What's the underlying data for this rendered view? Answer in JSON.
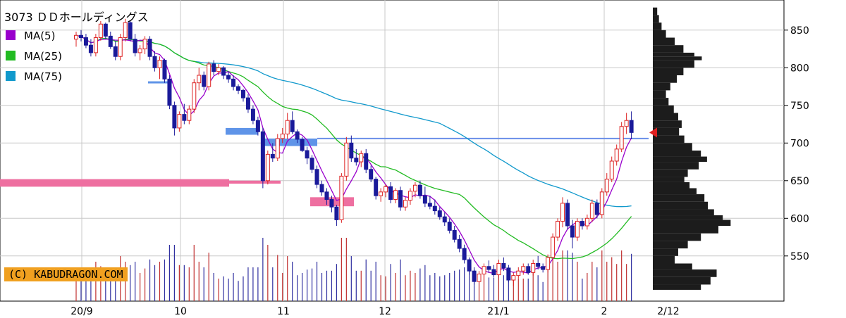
{
  "chart_data": {
    "type": "candlestick",
    "title": "3073 ＤＤホールディングス",
    "credit": "(C) KABUDRAGON.COM",
    "ylim": [
      490,
      890
    ],
    "y_ticks": [
      550,
      600,
      650,
      700,
      750,
      800,
      850
    ],
    "x_tick_labels": [
      "20/9",
      "10",
      "11",
      "12",
      "21/1",
      "2",
      "2/12"
    ],
    "last_close": 714,
    "legend": [
      {
        "name": "MA(5)",
        "color": "#9900cc"
      },
      {
        "name": "MA(25)",
        "color": "#22bb22"
      },
      {
        "name": "MA(75)",
        "color": "#1199cc"
      }
    ],
    "candles": [
      [
        838,
        848,
        828,
        843
      ],
      [
        843,
        850,
        835,
        840
      ],
      [
        840,
        845,
        826,
        830
      ],
      [
        830,
        838,
        815,
        820
      ],
      [
        820,
        845,
        815,
        840
      ],
      [
        840,
        862,
        836,
        858
      ],
      [
        858,
        860,
        838,
        842
      ],
      [
        842,
        848,
        825,
        828
      ],
      [
        828,
        835,
        810,
        815
      ],
      [
        815,
        845,
        810,
        840
      ],
      [
        840,
        865,
        835,
        860
      ],
      [
        860,
        862,
        835,
        838
      ],
      [
        838,
        845,
        815,
        820
      ],
      [
        820,
        830,
        810,
        825
      ],
      [
        825,
        842,
        818,
        838
      ],
      [
        838,
        842,
        810,
        815
      ],
      [
        815,
        822,
        795,
        800
      ],
      [
        800,
        815,
        785,
        810
      ],
      [
        810,
        812,
        780,
        785
      ],
      [
        785,
        790,
        745,
        750
      ],
      [
        750,
        755,
        710,
        720
      ],
      [
        720,
        742,
        715,
        738
      ],
      [
        738,
        752,
        725,
        730
      ],
      [
        730,
        750,
        725,
        745
      ],
      [
        745,
        785,
        740,
        780
      ],
      [
        780,
        800,
        770,
        790
      ],
      [
        790,
        795,
        770,
        775
      ],
      [
        775,
        808,
        770,
        805
      ],
      [
        805,
        810,
        790,
        795
      ],
      [
        795,
        805,
        790,
        800
      ],
      [
        800,
        802,
        785,
        790
      ],
      [
        790,
        795,
        780,
        785
      ],
      [
        785,
        790,
        770,
        775
      ],
      [
        775,
        778,
        765,
        770
      ],
      [
        770,
        772,
        755,
        760
      ],
      [
        760,
        765,
        740,
        745
      ],
      [
        745,
        750,
        725,
        730
      ],
      [
        730,
        735,
        710,
        715
      ],
      [
        715,
        720,
        640,
        650
      ],
      [
        650,
        690,
        645,
        685
      ],
      [
        685,
        700,
        675,
        680
      ],
      [
        680,
        712,
        676,
        706
      ],
      [
        706,
        720,
        700,
        712
      ],
      [
        712,
        740,
        705,
        730
      ],
      [
        730,
        742,
        712,
        715
      ],
      [
        715,
        718,
        700,
        705
      ],
      [
        705,
        708,
        688,
        690
      ],
      [
        690,
        695,
        672,
        680
      ],
      [
        680,
        684,
        660,
        665
      ],
      [
        665,
        670,
        640,
        645
      ],
      [
        645,
        650,
        630,
        635
      ],
      [
        635,
        640,
        618,
        625
      ],
      [
        625,
        630,
        608,
        615
      ],
      [
        615,
        618,
        590,
        598
      ],
      [
        598,
        660,
        594,
        656
      ],
      [
        656,
        708,
        650,
        700
      ],
      [
        700,
        710,
        675,
        680
      ],
      [
        680,
        692,
        670,
        675
      ],
      [
        675,
        690,
        668,
        686
      ],
      [
        686,
        692,
        660,
        665
      ],
      [
        665,
        670,
        648,
        652
      ],
      [
        652,
        655,
        625,
        630
      ],
      [
        630,
        640,
        622,
        635
      ],
      [
        635,
        645,
        628,
        642
      ],
      [
        642,
        648,
        620,
        625
      ],
      [
        625,
        640,
        620,
        637
      ],
      [
        637,
        642,
        610,
        615
      ],
      [
        615,
        628,
        610,
        624
      ],
      [
        624,
        640,
        618,
        636
      ],
      [
        636,
        648,
        628,
        644
      ],
      [
        644,
        650,
        626,
        630
      ],
      [
        630,
        642,
        615,
        620
      ],
      [
        620,
        630,
        612,
        616
      ],
      [
        616,
        625,
        605,
        610
      ],
      [
        610,
        615,
        598,
        602
      ],
      [
        602,
        608,
        590,
        595
      ],
      [
        595,
        600,
        580,
        584
      ],
      [
        584,
        590,
        568,
        572
      ],
      [
        572,
        578,
        555,
        560
      ],
      [
        560,
        565,
        540,
        545
      ],
      [
        545,
        548,
        525,
        530
      ],
      [
        530,
        535,
        512,
        516
      ],
      [
        516,
        530,
        514,
        526
      ],
      [
        526,
        540,
        520,
        536
      ],
      [
        536,
        544,
        528,
        532
      ],
      [
        532,
        538,
        522,
        525
      ],
      [
        525,
        545,
        522,
        540
      ],
      [
        540,
        548,
        530,
        534
      ],
      [
        534,
        538,
        515,
        518
      ],
      [
        518,
        528,
        510,
        524
      ],
      [
        524,
        535,
        520,
        530
      ],
      [
        530,
        540,
        525,
        536
      ],
      [
        536,
        540,
        525,
        528
      ],
      [
        528,
        545,
        524,
        540
      ],
      [
        540,
        550,
        532,
        536
      ],
      [
        536,
        540,
        528,
        532
      ],
      [
        532,
        552,
        528,
        548
      ],
      [
        548,
        580,
        545,
        575
      ],
      [
        575,
        600,
        570,
        596
      ],
      [
        596,
        628,
        588,
        620
      ],
      [
        620,
        625,
        585,
        590
      ],
      [
        590,
        598,
        560,
        575
      ],
      [
        575,
        600,
        570,
        596
      ],
      [
        596,
        600,
        585,
        590
      ],
      [
        590,
        605,
        585,
        600
      ],
      [
        600,
        625,
        595,
        620
      ],
      [
        620,
        625,
        600,
        605
      ],
      [
        605,
        640,
        600,
        635
      ],
      [
        635,
        660,
        630,
        652
      ],
      [
        652,
        682,
        648,
        676
      ],
      [
        676,
        698,
        670,
        692
      ],
      [
        692,
        728,
        688,
        722
      ],
      [
        722,
        740,
        712,
        730
      ],
      [
        730,
        742,
        705,
        714
      ]
    ]
  }
}
